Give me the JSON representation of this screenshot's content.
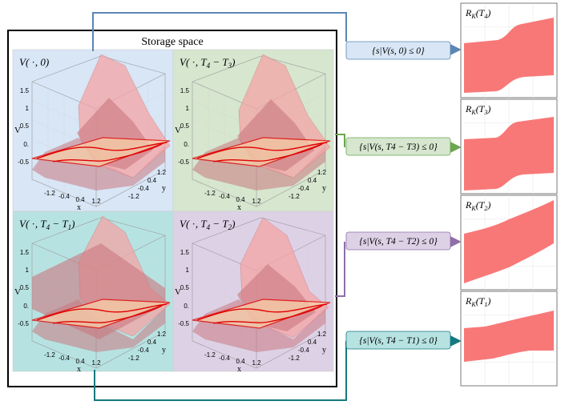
{
  "storage": {
    "title": "Storage space"
  },
  "colors": {
    "blue": "#d8e6f6",
    "green": "#d6e6cf",
    "teal": "#b7e2e2",
    "purple": "#ddd1e6",
    "blue_line": "#5b86b4",
    "green_line": "#6aa84f",
    "purple_line": "#8e6fa8",
    "teal_line": "#137a80",
    "surface": "#f4a5a5",
    "surface_dark": "#c9787f",
    "plane": "#f7cfa8",
    "red": "#e00000",
    "reach": "#f87878"
  },
  "panels": [
    {
      "id": "p1",
      "label_main": "V(",
      "label_sub": ", 0)",
      "bg": "blue"
    },
    {
      "id": "p2",
      "label_main": "V(",
      "label_sub": ", T",
      "label_tail": "4",
      "label_minus": " − T",
      "label_tail2": "3",
      "bg": "green"
    },
    {
      "id": "p3",
      "label_main": "V(",
      "label_sub": ", T",
      "label_tail": "4",
      "label_minus": " − T",
      "label_tail2": "1",
      "bg": "teal"
    },
    {
      "id": "p4",
      "label_main": "V(",
      "label_sub": ", T",
      "label_tail": "4",
      "label_minus": " − T",
      "label_tail2": "2",
      "bg": "purple"
    }
  ],
  "axis": {
    "z_title": "V",
    "x_title": "x",
    "y_title": "y",
    "z_ticks": [
      "1.5",
      "1",
      "0.5",
      "0.",
      "-0.5"
    ],
    "x_ticks": [
      "-1.2",
      "-0.4",
      "0.4",
      "1.2"
    ],
    "y_ticks": [
      "1.2",
      "0.4",
      "-0.4",
      "-1.2"
    ]
  },
  "sets": [
    {
      "text": "{s|V(s, 0) ≤ 0}",
      "bg": "blue",
      "line": "blue_line"
    },
    {
      "text": "{s|V(s, T4 − T3) ≤ 0}",
      "bg": "green",
      "line": "green_line"
    },
    {
      "text": "{s|V(s, T4 − T2) ≤ 0}",
      "bg": "purple",
      "line": "purple_line"
    },
    {
      "text": "{s|V(s, T4 − T1) ≤ 0}",
      "bg": "teal",
      "line": "teal_line"
    }
  ],
  "reach": [
    {
      "label": "R",
      "sub": "K",
      "arg": "T",
      "argsub": "4"
    },
    {
      "label": "R",
      "sub": "K",
      "arg": "T",
      "argsub": "3"
    },
    {
      "label": "R",
      "sub": "K",
      "arg": "T",
      "argsub": "2"
    },
    {
      "label": "R",
      "sub": "K",
      "arg": "T",
      "argsub": "1"
    }
  ]
}
